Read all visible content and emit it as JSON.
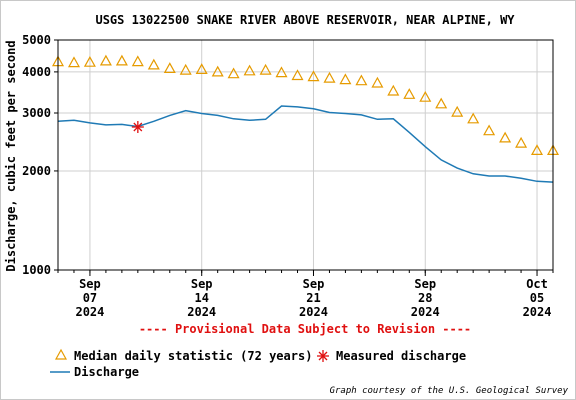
{
  "chart_data": {
    "type": "line",
    "title": "USGS 13022500 SNAKE RIVER ABOVE RESERVOIR, NEAR ALPINE, WY",
    "ylabel": "Discharge, cubic feet per second",
    "xlabel": "",
    "y_scale": "log",
    "ylim": [
      1000,
      5000
    ],
    "xlim": [
      "2024-09-05",
      "2024-10-06"
    ],
    "grid": true,
    "legend_position": "bottom-left",
    "y_ticks": [
      {
        "value": 1000,
        "label": "1000"
      },
      {
        "value": 2000,
        "label": "2000"
      },
      {
        "value": 3000,
        "label": "3000"
      },
      {
        "value": 4000,
        "label": "4000"
      },
      {
        "value": 5000,
        "label": "5000"
      }
    ],
    "x_ticks": [
      {
        "date": "2024-09-07",
        "label": [
          "Sep",
          "07",
          "2024"
        ]
      },
      {
        "date": "2024-09-14",
        "label": [
          "Sep",
          "14",
          "2024"
        ]
      },
      {
        "date": "2024-09-21",
        "label": [
          "Sep",
          "21",
          "2024"
        ]
      },
      {
        "date": "2024-09-28",
        "label": [
          "Sep",
          "28",
          "2024"
        ]
      },
      {
        "date": "2024-10-05",
        "label": [
          "Oct",
          "05",
          "2024"
        ]
      }
    ],
    "series": [
      {
        "name": "Median daily statistic (72 years)",
        "kind": "marker",
        "color": "#e69b00",
        "x": [
          "2024-09-05",
          "2024-09-06",
          "2024-09-07",
          "2024-09-08",
          "2024-09-09",
          "2024-09-10",
          "2024-09-11",
          "2024-09-12",
          "2024-09-13",
          "2024-09-14",
          "2024-09-15",
          "2024-09-16",
          "2024-09-17",
          "2024-09-18",
          "2024-09-19",
          "2024-09-20",
          "2024-09-21",
          "2024-09-22",
          "2024-09-23",
          "2024-09-24",
          "2024-09-25",
          "2024-09-26",
          "2024-09-27",
          "2024-09-28",
          "2024-09-29",
          "2024-09-30",
          "2024-10-01",
          "2024-10-02",
          "2024-10-03",
          "2024-10-04",
          "2024-10-05",
          "2024-10-06"
        ],
        "values": [
          4300,
          4270,
          4280,
          4320,
          4320,
          4300,
          4200,
          4100,
          4050,
          4070,
          4000,
          3950,
          4030,
          4050,
          3980,
          3900,
          3870,
          3830,
          3790,
          3760,
          3700,
          3500,
          3420,
          3350,
          3200,
          3020,
          2880,
          2650,
          2520,
          2430,
          2310,
          2310
        ]
      },
      {
        "name": "Discharge",
        "kind": "line",
        "color": "#1f7ab5",
        "x": [
          "2024-09-05",
          "2024-09-06",
          "2024-09-07",
          "2024-09-08",
          "2024-09-09",
          "2024-09-10",
          "2024-09-11",
          "2024-09-12",
          "2024-09-13",
          "2024-09-14",
          "2024-09-15",
          "2024-09-16",
          "2024-09-17",
          "2024-09-18",
          "2024-09-19",
          "2024-09-20",
          "2024-09-21",
          "2024-09-22",
          "2024-09-23",
          "2024-09-24",
          "2024-09-25",
          "2024-09-26",
          "2024-09-27",
          "2024-09-28",
          "2024-09-29",
          "2024-09-30",
          "2024-10-01",
          "2024-10-02",
          "2024-10-03",
          "2024-10-04",
          "2024-10-05",
          "2024-10-06"
        ],
        "values": [
          2830,
          2850,
          2800,
          2760,
          2770,
          2730,
          2830,
          2950,
          3050,
          2990,
          2950,
          2880,
          2850,
          2870,
          3150,
          3130,
          3090,
          3010,
          2990,
          2960,
          2870,
          2880,
          2620,
          2370,
          2160,
          2040,
          1960,
          1930,
          1930,
          1900,
          1860,
          1850
        ]
      },
      {
        "name": "Measured discharge",
        "kind": "marker",
        "color": "#e01010",
        "x": [
          "2024-09-10"
        ],
        "values": [
          2720
        ]
      }
    ],
    "annotations": [
      "---- Provisional Data Subject to Revision ----"
    ],
    "credit": "Graph courtesy of the U.S. Geological Survey"
  }
}
